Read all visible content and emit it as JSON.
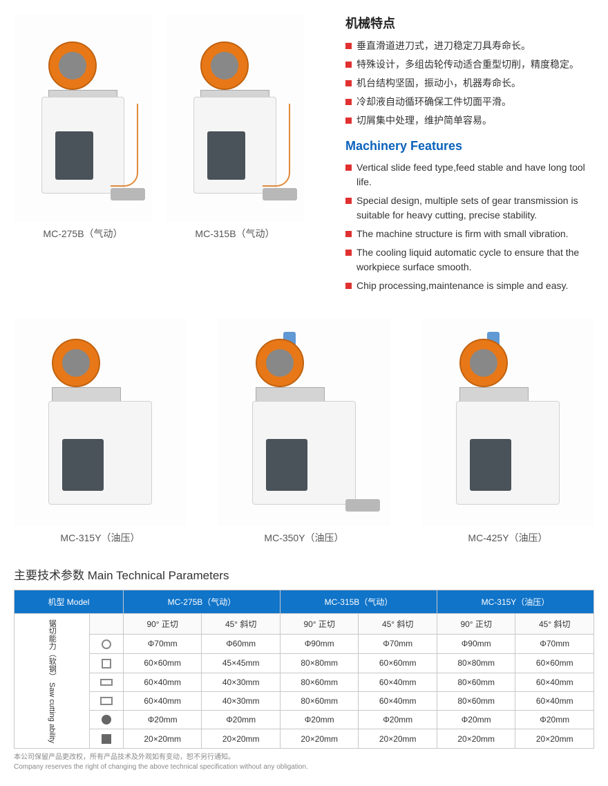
{
  "products_top": [
    {
      "label": "MC-275B（气动）"
    },
    {
      "label": "MC-315B（气动）"
    }
  ],
  "products_bottom": [
    {
      "label": "MC-315Y（油压）"
    },
    {
      "label": "MC-350Y（油压）"
    },
    {
      "label": "MC-425Y（油压）"
    }
  ],
  "features": {
    "title_cn": "机械特点",
    "list_cn": [
      "垂直滑道进刀式，进刀稳定刀具寿命长。",
      "特殊设计，多组齿轮传动适合重型切削，精度稳定。",
      "机台结构坚固，振动小，机器寿命长。",
      "冷却液自动循环确保工件切面平滑。",
      "切屑集中处理，维护简单容易。"
    ],
    "title_en": "Machinery Features",
    "list_en": [
      "Vertical slide feed type,feed stable and have long tool life.",
      "Special design, multiple sets of gear transmission is suitable for heavy cutting, precise stability.",
      "The machine structure is firm with small vibration.",
      "The cooling liquid automatic cycle to ensure that the workpiece surface smooth.",
      "Chip processing,maintenance is simple and easy."
    ]
  },
  "params": {
    "title": "主要技术参数 Main Technical Parameters",
    "side_label": "锯切能力（软钢）  Saw cutting ability",
    "header": {
      "model": "机型 Model",
      "cols": [
        "MC-275B（气动）",
        "MC-315B（气动）",
        "MC-315Y（油压）"
      ]
    },
    "subheader": {
      "a90": "90° 正切",
      "a45": "45° 斜切"
    },
    "rows": [
      {
        "shape": "circ-o",
        "vals": [
          "Φ70mm",
          "Φ60mm",
          "Φ90mm",
          "Φ70mm",
          "Φ90mm",
          "Φ70mm"
        ]
      },
      {
        "shape": "sq-o",
        "vals": [
          "60×60mm",
          "45×45mm",
          "80×80mm",
          "60×60mm",
          "80×80mm",
          "60×60mm"
        ]
      },
      {
        "shape": "rect-o",
        "vals": [
          "60×40mm",
          "40×30mm",
          "80×60mm",
          "60×40mm",
          "80×60mm",
          "60×40mm"
        ]
      },
      {
        "shape": "rect-o2",
        "vals": [
          "60×40mm",
          "40×30mm",
          "80×60mm",
          "60×40mm",
          "80×60mm",
          "60×40mm"
        ]
      },
      {
        "shape": "circ-f",
        "vals": [
          "Φ20mm",
          "Φ20mm",
          "Φ20mm",
          "Φ20mm",
          "Φ20mm",
          "Φ20mm"
        ]
      },
      {
        "shape": "sq-f",
        "vals": [
          "20×20mm",
          "20×20mm",
          "20×20mm",
          "20×20mm",
          "20×20mm",
          "20×20mm"
        ]
      }
    ],
    "footnote_cn": "本公司保留产品更改权，所有产品技术及外观如有变动，恕不另行通知。",
    "footnote_en": "Company reserves the right of changing the above technical specification without any obligation."
  },
  "colors": {
    "header_bg": "#1074c9",
    "bullet": "#e03030",
    "guard": "#e87817",
    "title_blue": "#0a62bb"
  }
}
